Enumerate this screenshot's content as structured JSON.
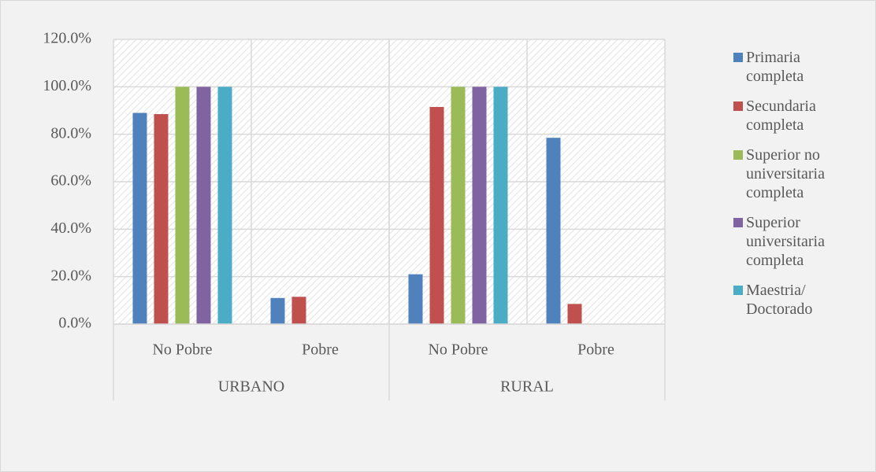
{
  "chart_data": {
    "type": "bar",
    "categories": [
      "No Pobre",
      "Pobre",
      "No Pobre",
      "Pobre"
    ],
    "groups": [
      "URBANO",
      "RURAL"
    ],
    "series": [
      {
        "name": "Primaria completa",
        "color": "#4f81bd",
        "values": [
          89,
          11,
          21,
          78.5
        ]
      },
      {
        "name": "Secundaria completa",
        "color": "#c0504d",
        "values": [
          88.5,
          11.5,
          91.5,
          8.5
        ]
      },
      {
        "name": "Superior no universitaria completa",
        "color": "#9bbb59",
        "values": [
          100,
          0,
          100,
          0
        ]
      },
      {
        "name": "Superior universitaria completa",
        "color": "#8064a2",
        "values": [
          100,
          0,
          100,
          0
        ]
      },
      {
        "name": "Maestria/ Doctorado",
        "color": "#4bacc6",
        "values": [
          100,
          0,
          100,
          0
        ]
      }
    ],
    "ylim": [
      0,
      120
    ],
    "yticks": [
      {
        "value": 0,
        "label": "0.0%"
      },
      {
        "value": 20,
        "label": "20.0%"
      },
      {
        "value": 40,
        "label": "40.0%"
      },
      {
        "value": 60,
        "label": "60.0%"
      },
      {
        "value": 80,
        "label": "80.0%"
      },
      {
        "value": 100,
        "label": "100.0%"
      },
      {
        "value": 120,
        "label": "120.0%"
      }
    ],
    "grid": true,
    "legend": "right"
  }
}
